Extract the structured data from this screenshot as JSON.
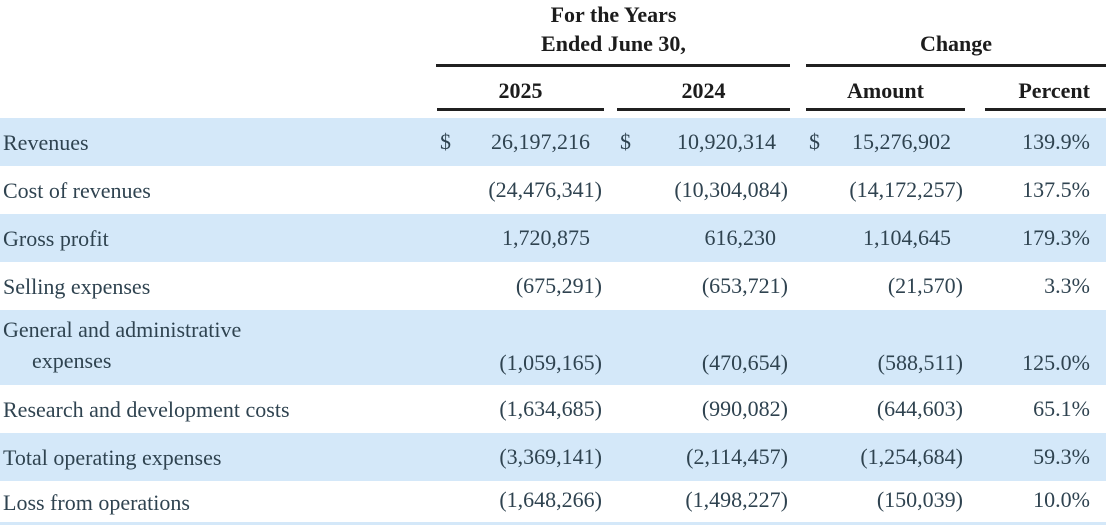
{
  "colors": {
    "row_shade": "#d4e8f9",
    "body_text": "#2f4350",
    "header_text": "#1c1c1c",
    "rule": "#202020"
  },
  "header": {
    "period_group_line1": "For the Years",
    "period_group_line2": "Ended June 30,",
    "change_group": "Change",
    "col_2025": "2025",
    "col_2024": "2024",
    "col_amount": "Amount",
    "col_percent": "Percent"
  },
  "table": {
    "rows": [
      {
        "label": "Revenues",
        "label2": "",
        "dollar": "$",
        "y2025": "26,197,216",
        "y2024": "10,920,314",
        "amount": "15,276,902",
        "percent": "139.9%"
      },
      {
        "label": "Cost of revenues",
        "label2": "",
        "dollar": "",
        "y2025": "(24,476,341)",
        "y2024": "(10,304,084)",
        "amount": "(14,172,257)",
        "percent": "137.5%"
      },
      {
        "label": "Gross profit",
        "label2": "",
        "dollar": "",
        "y2025": "1,720,875",
        "y2024": "616,230",
        "amount": "1,104,645",
        "percent": "179.3%"
      },
      {
        "label": "Selling expenses",
        "label2": "",
        "dollar": "",
        "y2025": "(675,291)",
        "y2024": "(653,721)",
        "amount": "(21,570)",
        "percent": "3.3%"
      },
      {
        "label": "General and administrative",
        "label2": "expenses",
        "dollar": "",
        "y2025": "(1,059,165)",
        "y2024": "(470,654)",
        "amount": "(588,511)",
        "percent": "125.0%"
      },
      {
        "label": "Research and development costs",
        "label2": "",
        "dollar": "",
        "y2025": "(1,634,685)",
        "y2024": "(990,082)",
        "amount": "(644,603)",
        "percent": "65.1%"
      },
      {
        "label": "Total operating expenses",
        "label2": "",
        "dollar": "",
        "y2025": "(3,369,141)",
        "y2024": "(2,114,457)",
        "amount": "(1,254,684)",
        "percent": "59.3%"
      },
      {
        "label": "Loss from operations",
        "label2": "",
        "dollar": "",
        "y2025": "(1,648,266)",
        "y2024": "(1,498,227)",
        "amount": "(150,039)",
        "percent": "10.0%"
      }
    ]
  }
}
